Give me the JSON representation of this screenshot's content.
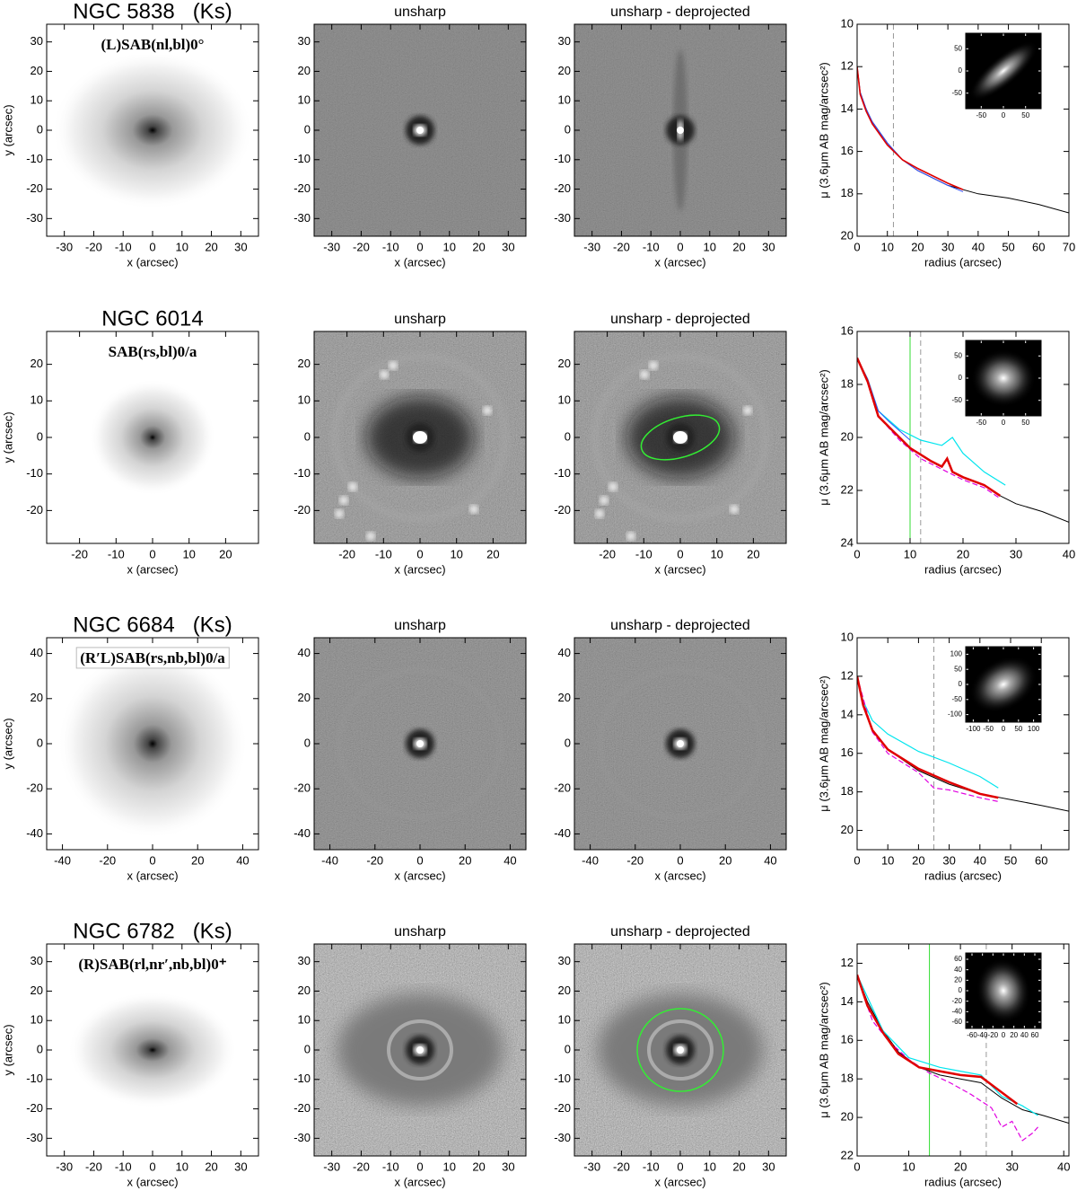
{
  "chart_data": [
    {
      "type": "image",
      "title": "NGC 5838   (Ks)",
      "annotation": "(L)SAB(nl,bl)0°",
      "xlabel": "x (arcsec)",
      "ylabel": "y (arcsec)",
      "xlim": [
        -36,
        36
      ],
      "ylim": [
        -36,
        36
      ],
      "xticks": [
        -30,
        -20,
        -10,
        0,
        10,
        20,
        30
      ],
      "yticks": [
        -30,
        -20,
        -10,
        0,
        10,
        20,
        30
      ]
    },
    {
      "type": "image",
      "title": "unsharp",
      "xlabel": "x (arcsec)",
      "xlim": [
        -36,
        36
      ],
      "ylim": [
        -36,
        36
      ],
      "xticks": [
        -30,
        -20,
        -10,
        0,
        10,
        20,
        30
      ],
      "yticks": [
        -30,
        -20,
        -10,
        0,
        10,
        20,
        30
      ]
    },
    {
      "type": "image",
      "title": "unsharp - deprojected",
      "xlabel": "x (arcsec)",
      "xlim": [
        -36,
        36
      ],
      "ylim": [
        -36,
        36
      ],
      "xticks": [
        -30,
        -20,
        -10,
        0,
        10,
        20,
        30
      ],
      "yticks": [
        -30,
        -20,
        -10,
        0,
        10,
        20,
        30
      ]
    },
    {
      "type": "line",
      "xlabel": "radius (arcsec)",
      "ylabel": "μ (3.6μm AB mag/arcsec²)",
      "xlim": [
        0,
        70
      ],
      "ylim": [
        20,
        10
      ],
      "xticks": [
        0,
        10,
        20,
        30,
        40,
        50,
        60,
        70
      ],
      "yticks": [
        10,
        12,
        14,
        16,
        18,
        20
      ],
      "series": [
        {
          "color": "#000000",
          "width": 1,
          "dash": false,
          "x": [
            0,
            1,
            3,
            5,
            10,
            15,
            20,
            30,
            40,
            50,
            60,
            70
          ],
          "values": [
            12,
            13.2,
            14.0,
            14.6,
            15.6,
            16.4,
            16.9,
            17.6,
            18.0,
            18.2,
            18.5,
            18.9
          ]
        },
        {
          "color": "#3050ff",
          "width": 1,
          "dash": false,
          "x": [
            0,
            1,
            3,
            5,
            10,
            15,
            20,
            30,
            35
          ],
          "values": [
            12,
            13.2,
            14.0,
            14.6,
            15.6,
            16.4,
            16.9,
            17.6,
            17.9
          ]
        },
        {
          "color": "#e00000",
          "width": 1.6,
          "dash": false,
          "x": [
            0,
            1,
            3,
            5,
            10,
            15,
            20,
            30,
            35
          ],
          "values": [
            12,
            13.3,
            14.1,
            14.7,
            15.7,
            16.4,
            16.8,
            17.5,
            17.8
          ]
        }
      ],
      "vlines": [
        {
          "x": 12,
          "color": "#999999",
          "dash": true
        }
      ],
      "inset": {
        "xlim": [
          -85,
          85
        ],
        "ylim": [
          -85,
          85
        ],
        "xticks": [
          -50,
          0,
          50
        ],
        "yticks": [
          -50,
          0,
          50
        ]
      }
    },
    {
      "type": "image",
      "title": "NGC 6014",
      "annotation": "SAB(rs,bl)0/a",
      "xlabel": "x (arcsec)",
      "ylabel": "y (arcsec)",
      "xlim": [
        -29,
        29
      ],
      "ylim": [
        -29,
        29
      ],
      "xticks": [
        -20,
        -10,
        0,
        10,
        20
      ],
      "yticks": [
        -20,
        -10,
        0,
        10,
        20
      ]
    },
    {
      "type": "image",
      "title": "unsharp",
      "xlabel": "x (arcsec)",
      "xlim": [
        -29,
        29
      ],
      "ylim": [
        -29,
        29
      ],
      "xticks": [
        -20,
        -10,
        0,
        10,
        20
      ],
      "yticks": [
        -20,
        -10,
        0,
        10,
        20
      ]
    },
    {
      "type": "image",
      "title": "unsharp - deprojected",
      "xlabel": "x (arcsec)",
      "xlim": [
        -29,
        29
      ],
      "ylim": [
        -29,
        29
      ],
      "xticks": [
        -20,
        -10,
        0,
        10,
        20
      ],
      "yticks": [
        -20,
        -10,
        0,
        10,
        20
      ]
    },
    {
      "type": "line",
      "xlabel": "radius (arcsec)",
      "ylabel": "μ (3.6μm AB mag/arcsec²)",
      "xlim": [
        0,
        40
      ],
      "ylim": [
        24,
        16
      ],
      "xticks": [
        0,
        10,
        20,
        30,
        40
      ],
      "yticks": [
        16,
        18,
        20,
        22,
        24
      ],
      "series": [
        {
          "color": "#000000",
          "width": 1,
          "dash": false,
          "x": [
            27,
            30,
            35,
            40
          ],
          "values": [
            22.2,
            22.5,
            22.8,
            23.2
          ]
        },
        {
          "color": "#00e5ee",
          "width": 1.2,
          "dash": false,
          "x": [
            0,
            2,
            4,
            8,
            12,
            16,
            18,
            20,
            24,
            28
          ],
          "values": [
            17,
            17.8,
            19.0,
            19.7,
            20.1,
            20.3,
            20.0,
            20.6,
            21.3,
            21.8
          ]
        },
        {
          "color": "#3050ff",
          "width": 1,
          "dash": false,
          "x": [
            0,
            2,
            4,
            6,
            10
          ],
          "values": [
            17,
            17.8,
            19.0,
            19.4,
            20.1
          ]
        },
        {
          "color": "#e000e0",
          "width": 1.2,
          "dash": true,
          "x": [
            2,
            4,
            8,
            12,
            16,
            20,
            24,
            27
          ],
          "values": [
            17.9,
            19.2,
            20.1,
            20.8,
            21.2,
            21.6,
            21.9,
            22.3
          ]
        },
        {
          "color": "#e00000",
          "width": 2.5,
          "dash": false,
          "x": [
            0,
            2,
            4,
            6,
            10,
            14,
            16,
            17,
            18,
            20,
            24,
            27
          ],
          "values": [
            17,
            17.9,
            19.2,
            19.6,
            20.4,
            20.9,
            21.1,
            20.8,
            21.3,
            21.5,
            21.8,
            22.2
          ]
        }
      ],
      "vlines": [
        {
          "x": 10,
          "color": "#33dd33",
          "dash": false
        },
        {
          "x": 12,
          "color": "#999999",
          "dash": true
        }
      ],
      "inset": {
        "xlim": [
          -85,
          85
        ],
        "ylim": [
          -85,
          85
        ],
        "xticks": [
          -50,
          0,
          50
        ],
        "yticks": [
          -50,
          0,
          50
        ]
      }
    },
    {
      "type": "image",
      "title": "NGC 6684   (Ks)",
      "annotation": "(R′L)SAB(rs,nb,bl)0/a",
      "xlabel": "x (arcsec)",
      "ylabel": "y (arcsec)",
      "xlim": [
        -47,
        47
      ],
      "ylim": [
        -47,
        47
      ],
      "xticks": [
        -40,
        -20,
        0,
        20,
        40
      ],
      "yticks": [
        -40,
        -20,
        0,
        20,
        40
      ]
    },
    {
      "type": "image",
      "title": "unsharp",
      "xlabel": "x (arcsec)",
      "xlim": [
        -47,
        47
      ],
      "ylim": [
        -47,
        47
      ],
      "xticks": [
        -40,
        -20,
        0,
        20,
        40
      ],
      "yticks": [
        -40,
        -20,
        0,
        20,
        40
      ]
    },
    {
      "type": "image",
      "title": "unsharp - deprojected",
      "xlabel": "x (arcsec)",
      "xlim": [
        -47,
        47
      ],
      "ylim": [
        -47,
        47
      ],
      "xticks": [
        -40,
        -20,
        0,
        20,
        40
      ],
      "yticks": [
        -40,
        -20,
        0,
        20,
        40
      ]
    },
    {
      "type": "line",
      "xlabel": "radius (arcsec)",
      "ylabel": "μ (3.6μm AB mag/arcsec²)",
      "xlim": [
        0,
        69
      ],
      "ylim": [
        21,
        10
      ],
      "xticks": [
        0,
        10,
        20,
        30,
        40,
        50,
        60
      ],
      "yticks": [
        10,
        12,
        14,
        16,
        18,
        20
      ],
      "series": [
        {
          "color": "#000000",
          "width": 1,
          "dash": false,
          "x": [
            0,
            2,
            5,
            10,
            20,
            30,
            40,
            50,
            60,
            69
          ],
          "values": [
            12,
            13.5,
            14.8,
            15.8,
            16.9,
            17.6,
            18.1,
            18.4,
            18.7,
            19.0
          ]
        },
        {
          "color": "#00e5ee",
          "width": 1.2,
          "dash": false,
          "x": [
            0,
            2,
            5,
            10,
            20,
            30,
            40,
            46
          ],
          "values": [
            12,
            13.3,
            14.3,
            15.0,
            15.9,
            16.5,
            17.2,
            17.8
          ]
        },
        {
          "color": "#e000e0",
          "width": 1.2,
          "dash": true,
          "x": [
            0,
            5,
            10,
            20,
            25,
            30,
            40,
            46
          ],
          "values": [
            12,
            14.9,
            16.0,
            17.0,
            17.8,
            17.9,
            18.3,
            18.5
          ]
        },
        {
          "color": "#e00000",
          "width": 2.5,
          "dash": false,
          "x": [
            0,
            2,
            5,
            10,
            20,
            30,
            40,
            46
          ],
          "values": [
            12,
            13.5,
            14.8,
            15.8,
            16.8,
            17.5,
            18.1,
            18.3
          ]
        }
      ],
      "vlines": [
        {
          "x": 25,
          "color": "#999999",
          "dash": true
        }
      ],
      "inset": {
        "xlim": [
          -125,
          125
        ],
        "ylim": [
          -125,
          125
        ],
        "xticks": [
          -100,
          -50,
          0,
          50,
          100
        ],
        "yticks": [
          -100,
          -50,
          0,
          50,
          100
        ]
      }
    },
    {
      "type": "image",
      "title": "NGC 6782   (Ks)",
      "annotation": "(R)SAB(rl,nr′,nb,bl)0⁺",
      "xlabel": "x (arcsec)",
      "ylabel": "y (arcsec)",
      "xlim": [
        -36,
        36
      ],
      "ylim": [
        -36,
        36
      ],
      "xticks": [
        -30,
        -20,
        -10,
        0,
        10,
        20,
        30
      ],
      "yticks": [
        -30,
        -20,
        -10,
        0,
        10,
        20,
        30
      ]
    },
    {
      "type": "image",
      "title": "unsharp",
      "xlabel": "x (arcsec)",
      "xlim": [
        -36,
        36
      ],
      "ylim": [
        -36,
        36
      ],
      "xticks": [
        -30,
        -20,
        -10,
        0,
        10,
        20,
        30
      ],
      "yticks": [
        -30,
        -20,
        -10,
        0,
        10,
        20,
        30
      ]
    },
    {
      "type": "image",
      "title": "unsharp - deprojected",
      "xlabel": "x (arcsec)",
      "xlim": [
        -36,
        36
      ],
      "ylim": [
        -36,
        36
      ],
      "xticks": [
        -30,
        -20,
        -10,
        0,
        10,
        20,
        30
      ],
      "yticks": [
        -30,
        -20,
        -10,
        0,
        10,
        20,
        30
      ]
    },
    {
      "type": "line",
      "xlabel": "radius (arcsec)",
      "ylabel": "μ (3.6μm AB mag/arcsec²)",
      "xlim": [
        0,
        41
      ],
      "ylim": [
        22,
        11
      ],
      "xticks": [
        0,
        10,
        20,
        30,
        40
      ],
      "yticks": [
        12,
        14,
        16,
        18,
        20,
        22
      ],
      "series": [
        {
          "color": "#000000",
          "width": 1,
          "dash": false,
          "x": [
            0,
            2,
            5,
            8,
            12,
            16,
            20,
            24,
            28,
            32,
            36,
            41
          ],
          "values": [
            12.6,
            14.0,
            15.5,
            16.6,
            17.4,
            17.8,
            18.0,
            18.2,
            19.0,
            19.6,
            19.9,
            20.3
          ]
        },
        {
          "color": "#00e5ee",
          "width": 1.2,
          "dash": false,
          "x": [
            0,
            5,
            10,
            16,
            20,
            24,
            28,
            32,
            35
          ],
          "values": [
            12.6,
            15.5,
            16.9,
            17.4,
            17.6,
            17.8,
            18.9,
            19.4,
            19.9
          ]
        },
        {
          "color": "#e000e0",
          "width": 1.2,
          "dash": true,
          "x": [
            1,
            3,
            6,
            10,
            14,
            18,
            22,
            26,
            28,
            30,
            32,
            34,
            35
          ],
          "values": [
            13.5,
            15.0,
            16.0,
            17.0,
            17.7,
            18.2,
            18.8,
            19.5,
            20.5,
            20.2,
            21.2,
            20.8,
            20.5
          ]
        },
        {
          "color": "#e00000",
          "width": 2.5,
          "dash": false,
          "x": [
            0,
            2,
            5,
            8,
            12,
            16,
            20,
            24,
            28,
            31
          ],
          "values": [
            12.6,
            14.2,
            15.6,
            16.7,
            17.4,
            17.6,
            17.8,
            17.9,
            18.7,
            19.3
          ]
        }
      ],
      "vlines": [
        {
          "x": 14,
          "color": "#33dd33",
          "dash": false
        },
        {
          "x": 25,
          "color": "#999999",
          "dash": true
        }
      ],
      "inset": {
        "xlim": [
          -72,
          72
        ],
        "ylim": [
          -72,
          72
        ],
        "xticks": [
          -60,
          -40,
          -20,
          0,
          20,
          40,
          60
        ],
        "yticks": [
          -60,
          -40,
          -20,
          0,
          20,
          40,
          60
        ]
      }
    }
  ]
}
